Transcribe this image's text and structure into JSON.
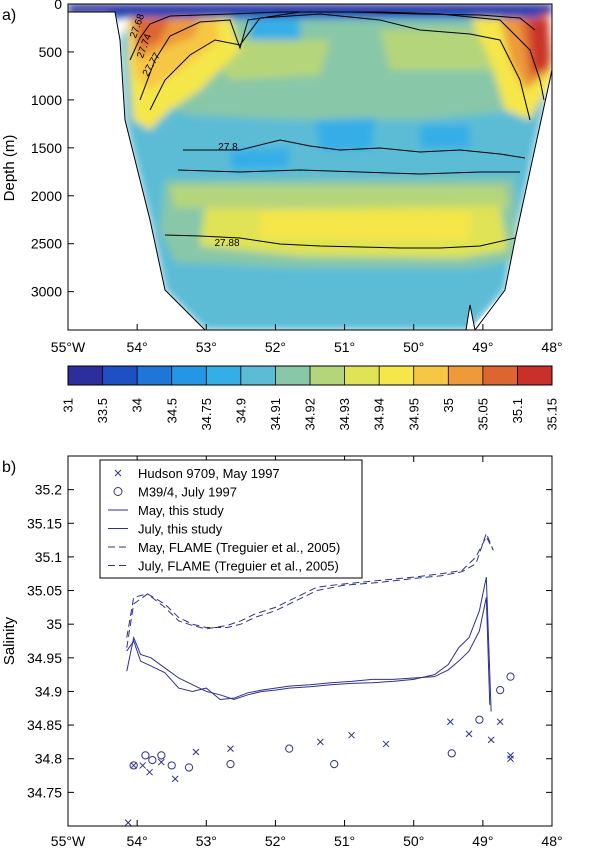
{
  "panels": {
    "a": "a)",
    "b": "b)"
  },
  "chart_data": [
    {
      "panel": "a)",
      "type": "heatmap",
      "ylabel": "Depth (m)",
      "xlabel": "",
      "x_ticks": [
        "55°W",
        "54°",
        "53°",
        "52°",
        "51°",
        "50°",
        "49°",
        "48°"
      ],
      "y_ticks": [
        "0",
        "500",
        "1000",
        "1500",
        "2000",
        "2500",
        "3000"
      ],
      "xlim": [
        -55,
        -48
      ],
      "ylim": [
        3400,
        0
      ],
      "colorbar": {
        "labels": [
          "31",
          "33.5",
          "34",
          "34.5",
          "34.75",
          "34.9",
          "34.91",
          "34.92",
          "34.93",
          "34.94",
          "34.95",
          "35",
          "35.05",
          "35.1",
          "35.15"
        ],
        "colors": [
          "#2b2e9b",
          "#1f4fc4",
          "#1f75d8",
          "#2596e6",
          "#35aee8",
          "#5cbcd6",
          "#88c7a8",
          "#b5d57a",
          "#dfe355",
          "#f5e64a",
          "#f6c744",
          "#ec9a3a",
          "#dd6531",
          "#c9302a"
        ]
      },
      "isopycnal_labels": [
        "27.68",
        "27.74",
        "27.77",
        "27.8",
        "27.88"
      ]
    },
    {
      "panel": "b)",
      "type": "line",
      "ylabel": "Salinity",
      "xlabel": "",
      "x_ticks": [
        "55°W",
        "54°",
        "53°",
        "52°",
        "51°",
        "50°",
        "49°",
        "48°"
      ],
      "y_ticks": [
        "34.75",
        "34.8",
        "34.85",
        "34.9",
        "34.95",
        "35",
        "35.05",
        "35.1",
        "35.15",
        "35.2"
      ],
      "xlim": [
        -55,
        -48
      ],
      "ylim": [
        34.7,
        35.25
      ],
      "color": "#2e3192",
      "legend": [
        "Hudson 9709, May 1997",
        "M39/4, July 1997",
        "May, this study",
        "July, this study",
        "May, FLAME (Treguier et al., 2005)",
        "July, FLAME (Treguier et al., 2005)"
      ],
      "series": [
        {
          "name": "Hudson 9709, May 1997",
          "marker": "x",
          "points": [
            [
              -54.13,
              34.705
            ],
            [
              -54.05,
              34.79
            ],
            [
              -53.92,
              34.79
            ],
            [
              -53.82,
              34.78
            ],
            [
              -53.65,
              34.795
            ],
            [
              -53.45,
              34.77
            ],
            [
              -53.15,
              34.81
            ],
            [
              -52.65,
              34.815
            ],
            [
              -51.35,
              34.825
            ],
            [
              -50.9,
              34.835
            ],
            [
              -50.4,
              34.822
            ],
            [
              -49.47,
              34.855
            ],
            [
              -49.2,
              34.837
            ],
            [
              -48.88,
              34.828
            ],
            [
              -48.75,
              34.855
            ],
            [
              -48.6,
              34.805
            ],
            [
              -48.6,
              34.8
            ]
          ]
        },
        {
          "name": "M39/4, July 1997",
          "marker": "o",
          "points": [
            [
              -54.05,
              34.79
            ],
            [
              -53.88,
              34.805
            ],
            [
              -53.78,
              34.798
            ],
            [
              -53.65,
              34.805
            ],
            [
              -53.5,
              34.79
            ],
            [
              -53.25,
              34.787
            ],
            [
              -52.65,
              34.792
            ],
            [
              -51.8,
              34.815
            ],
            [
              -51.15,
              34.792
            ],
            [
              -49.45,
              34.808
            ],
            [
              -49.05,
              34.858
            ],
            [
              -48.75,
              34.902
            ],
            [
              -48.6,
              34.922
            ]
          ]
        },
        {
          "name": "May, this study",
          "style": "solid",
          "points": [
            [
              -54.15,
              34.93
            ],
            [
              -54.05,
              34.98
            ],
            [
              -53.95,
              34.955
            ],
            [
              -53.8,
              34.95
            ],
            [
              -53.6,
              34.935
            ],
            [
              -53.4,
              34.92
            ],
            [
              -53.2,
              34.91
            ],
            [
              -53.0,
              34.9
            ],
            [
              -52.8,
              34.895
            ],
            [
              -52.6,
              34.888
            ],
            [
              -52.4,
              34.895
            ],
            [
              -52.2,
              34.9
            ],
            [
              -52.0,
              34.902
            ],
            [
              -51.8,
              34.905
            ],
            [
              -51.5,
              34.907
            ],
            [
              -51.2,
              34.91
            ],
            [
              -50.9,
              34.912
            ],
            [
              -50.6,
              34.913
            ],
            [
              -50.3,
              34.915
            ],
            [
              -50.0,
              34.918
            ],
            [
              -49.7,
              34.925
            ],
            [
              -49.5,
              34.94
            ],
            [
              -49.35,
              34.965
            ],
            [
              -49.2,
              34.98
            ],
            [
              -49.05,
              35.02
            ],
            [
              -48.95,
              35.07
            ],
            [
              -48.88,
              34.87
            ]
          ]
        },
        {
          "name": "July, this study",
          "style": "solid",
          "points": [
            [
              -54.15,
              34.96
            ],
            [
              -54.05,
              34.975
            ],
            [
              -53.95,
              34.945
            ],
            [
              -53.8,
              34.938
            ],
            [
              -53.6,
              34.928
            ],
            [
              -53.4,
              34.905
            ],
            [
              -53.2,
              34.9
            ],
            [
              -53.0,
              34.905
            ],
            [
              -52.8,
              34.888
            ],
            [
              -52.6,
              34.89
            ],
            [
              -52.4,
              34.898
            ],
            [
              -52.2,
              34.902
            ],
            [
              -52.0,
              34.905
            ],
            [
              -51.8,
              34.908
            ],
            [
              -51.5,
              34.91
            ],
            [
              -51.2,
              34.913
            ],
            [
              -50.9,
              34.915
            ],
            [
              -50.6,
              34.918
            ],
            [
              -50.3,
              34.918
            ],
            [
              -50.0,
              34.92
            ],
            [
              -49.7,
              34.922
            ],
            [
              -49.5,
              34.932
            ],
            [
              -49.35,
              34.945
            ],
            [
              -49.2,
              34.96
            ],
            [
              -49.05,
              34.99
            ],
            [
              -48.95,
              35.04
            ],
            [
              -48.9,
              34.88
            ]
          ]
        },
        {
          "name": "May, FLAME (Treguier et al., 2005)",
          "style": "dashed",
          "points": [
            [
              -54.15,
              34.98
            ],
            [
              -54.05,
              35.04
            ],
            [
              -53.85,
              35.045
            ],
            [
              -53.6,
              35.03
            ],
            [
              -53.4,
              35.01
            ],
            [
              -53.2,
              35.0
            ],
            [
              -53.0,
              34.995
            ],
            [
              -52.7,
              34.995
            ],
            [
              -52.5,
              35.0
            ],
            [
              -52.3,
              35.01
            ],
            [
              -52.0,
              35.02
            ],
            [
              -51.7,
              35.035
            ],
            [
              -51.4,
              35.05
            ],
            [
              -51.0,
              35.058
            ],
            [
              -50.5,
              35.062
            ],
            [
              -50.0,
              35.068
            ],
            [
              -49.6,
              35.072
            ],
            [
              -49.3,
              35.078
            ],
            [
              -49.1,
              35.09
            ],
            [
              -48.95,
              35.135
            ],
            [
              -48.85,
              35.11
            ]
          ]
        },
        {
          "name": "July, FLAME (Treguier et al., 2005)",
          "style": "dashed",
          "points": [
            [
              -54.15,
              34.965
            ],
            [
              -54.05,
              35.03
            ],
            [
              -53.85,
              35.045
            ],
            [
              -53.6,
              35.025
            ],
            [
              -53.4,
              35.005
            ],
            [
              -53.2,
              34.998
            ],
            [
              -53.0,
              34.993
            ],
            [
              -52.7,
              34.998
            ],
            [
              -52.5,
              35.005
            ],
            [
              -52.3,
              35.015
            ],
            [
              -52.0,
              35.025
            ],
            [
              -51.7,
              35.04
            ],
            [
              -51.4,
              35.055
            ],
            [
              -51.0,
              35.06
            ],
            [
              -50.5,
              35.065
            ],
            [
              -50.0,
              35.07
            ],
            [
              -49.6,
              35.075
            ],
            [
              -49.3,
              35.08
            ],
            [
              -49.1,
              35.1
            ],
            [
              -48.95,
              35.13
            ],
            [
              -48.85,
              35.11
            ]
          ]
        }
      ]
    }
  ]
}
